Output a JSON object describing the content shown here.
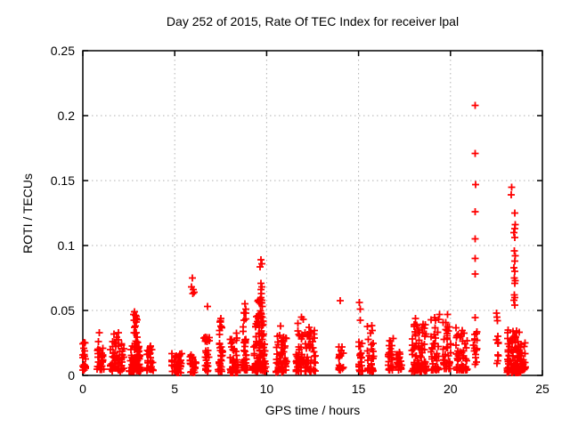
{
  "chart_data": {
    "type": "scatter",
    "title": "Day 252 of 2015, Rate Of TEC Index for receiver lpal",
    "xlabel": "GPS time / hours",
    "ylabel": "ROTI / TECUs",
    "xlim": [
      0,
      25
    ],
    "ylim": [
      0,
      0.25
    ],
    "x_ticks": [
      {
        "v": 0,
        "label": "0"
      },
      {
        "v": 5,
        "label": "5"
      },
      {
        "v": 10,
        "label": "10"
      },
      {
        "v": 15,
        "label": "15"
      },
      {
        "v": 20,
        "label": "20"
      },
      {
        "v": 25,
        "label": "25"
      }
    ],
    "y_ticks": [
      {
        "v": 0,
        "label": "0"
      },
      {
        "v": 0.05,
        "label": "0.05"
      },
      {
        "v": 0.1,
        "label": "0.1"
      },
      {
        "v": 0.15,
        "label": "0.15"
      },
      {
        "v": 0.2,
        "label": "0.2"
      },
      {
        "v": 0.25,
        "label": "0.25"
      }
    ],
    "grid": true,
    "legend": false,
    "marker": "plus",
    "marker_color": "#ff0000",
    "grid_color": "#b0b0b0",
    "axis_color": "#000000",
    "clusters": [
      {
        "x": 0.08,
        "hw": 0.1,
        "ymin": 0.004,
        "ymax": 0.031,
        "n": 22,
        "bias": 1.6
      },
      {
        "x": 0.95,
        "hw": 0.18,
        "ymin": 0.004,
        "ymax": 0.021,
        "n": 30,
        "bias": 1.5
      },
      {
        "x": 1.85,
        "hw": 0.38,
        "ymin": 0.003,
        "ymax": 0.03,
        "n": 55,
        "bias": 1.6
      },
      {
        "x": 2.85,
        "hw": 0.33,
        "ymin": 0.003,
        "ymax": 0.047,
        "n": 90,
        "bias": 2.2,
        "taper": true
      },
      {
        "x": 3.65,
        "hw": 0.18,
        "ymin": 0.003,
        "ymax": 0.024,
        "n": 30,
        "bias": 1.6
      },
      {
        "x": 5.1,
        "hw": 0.28,
        "ymin": 0.002,
        "ymax": 0.017,
        "n": 40,
        "bias": 1.4
      },
      {
        "x": 6.0,
        "hw": 0.17,
        "ymin": 0.002,
        "ymax": 0.016,
        "n": 28,
        "bias": 1.4
      },
      {
        "x": 6.75,
        "hw": 0.16,
        "ymin": 0.003,
        "ymax": 0.03,
        "n": 28,
        "bias": 1.7
      },
      {
        "x": 7.5,
        "hw": 0.14,
        "ymin": 0.003,
        "ymax": 0.046,
        "n": 32,
        "bias": 2.0,
        "taper": true
      },
      {
        "x": 8.2,
        "hw": 0.22,
        "ymin": 0.002,
        "ymax": 0.034,
        "n": 45,
        "bias": 1.8
      },
      {
        "x": 8.8,
        "hw": 0.16,
        "ymin": 0.004,
        "ymax": 0.056,
        "n": 40,
        "bias": 2.1,
        "taper": true
      },
      {
        "x": 9.6,
        "hw": 0.38,
        "ymin": 0.003,
        "ymax": 0.06,
        "n": 110,
        "bias": 2.2,
        "taper": true
      },
      {
        "x": 10.8,
        "hw": 0.3,
        "ymin": 0.002,
        "ymax": 0.032,
        "n": 65,
        "bias": 1.7
      },
      {
        "x": 12.1,
        "hw": 0.55,
        "ymin": 0.003,
        "ymax": 0.035,
        "n": 95,
        "bias": 1.8
      },
      {
        "x": 14.05,
        "hw": 0.14,
        "ymin": 0.004,
        "ymax": 0.022,
        "n": 20,
        "bias": 1.5
      },
      {
        "x": 15.1,
        "hw": 0.12,
        "ymin": 0.003,
        "ymax": 0.028,
        "n": 26,
        "bias": 1.7
      },
      {
        "x": 15.65,
        "hw": 0.17,
        "ymin": 0.003,
        "ymax": 0.04,
        "n": 30,
        "bias": 1.9
      },
      {
        "x": 16.75,
        "hw": 0.14,
        "ymin": 0.004,
        "ymax": 0.031,
        "n": 26,
        "bias": 1.7
      },
      {
        "x": 17.2,
        "hw": 0.16,
        "ymin": 0.004,
        "ymax": 0.018,
        "n": 20,
        "bias": 1.4
      },
      {
        "x": 18.3,
        "hw": 0.42,
        "ymin": 0.003,
        "ymax": 0.04,
        "n": 85,
        "bias": 1.9
      },
      {
        "x": 19.15,
        "hw": 0.22,
        "ymin": 0.004,
        "ymax": 0.046,
        "n": 40,
        "bias": 1.9
      },
      {
        "x": 19.8,
        "hw": 0.22,
        "ymin": 0.005,
        "ymax": 0.042,
        "n": 38,
        "bias": 1.8
      },
      {
        "x": 20.6,
        "hw": 0.32,
        "ymin": 0.004,
        "ymax": 0.038,
        "n": 50,
        "bias": 1.8
      },
      {
        "x": 21.35,
        "hw": 0.1,
        "ymin": 0.008,
        "ymax": 0.035,
        "n": 15,
        "bias": 1.5
      },
      {
        "x": 22.55,
        "hw": 0.06,
        "ymin": 0.008,
        "ymax": 0.035,
        "n": 10,
        "bias": 1.3
      },
      {
        "x": 23.45,
        "hw": 0.38,
        "ymin": 0.002,
        "ymax": 0.035,
        "n": 100,
        "bias": 1.8
      },
      {
        "x": 23.95,
        "hw": 0.15,
        "ymin": 0.004,
        "ymax": 0.025,
        "n": 20,
        "bias": 1.5
      }
    ],
    "points": [
      [
        0.85,
        0.026
      ],
      [
        0.9,
        0.033
      ],
      [
        1.7,
        0.032
      ],
      [
        1.95,
        0.033
      ],
      [
        2.75,
        0.047
      ],
      [
        2.8,
        0.049
      ],
      [
        5.92,
        0.068
      ],
      [
        5.95,
        0.075
      ],
      [
        5.98,
        0.063
      ],
      [
        6.0,
        0.066
      ],
      [
        6.05,
        0.064
      ],
      [
        6.78,
        0.053
      ],
      [
        7.45,
        0.041
      ],
      [
        7.5,
        0.044
      ],
      [
        7.55,
        0.037
      ],
      [
        9.65,
        0.0835
      ],
      [
        9.7,
        0.089
      ],
      [
        9.75,
        0.086
      ],
      [
        9.68,
        0.066
      ],
      [
        9.7,
        0.071
      ],
      [
        9.72,
        0.063
      ],
      [
        9.73,
        0.068
      ],
      [
        9.7,
        0.06
      ],
      [
        9.75,
        0.058
      ],
      [
        10.75,
        0.038
      ],
      [
        11.7,
        0.04
      ],
      [
        11.9,
        0.045
      ],
      [
        12.0,
        0.043
      ],
      [
        12.3,
        0.037
      ],
      [
        14.0,
        0.0575
      ],
      [
        15.05,
        0.056
      ],
      [
        15.08,
        0.051
      ],
      [
        15.1,
        0.0425
      ],
      [
        18.1,
        0.044
      ],
      [
        19.4,
        0.047
      ],
      [
        19.85,
        0.047
      ],
      [
        21.35,
        0.0445
      ],
      [
        21.35,
        0.078
      ],
      [
        21.35,
        0.09
      ],
      [
        21.33,
        0.105
      ],
      [
        21.35,
        0.126
      ],
      [
        21.37,
        0.147
      ],
      [
        21.33,
        0.171
      ],
      [
        21.35,
        0.208
      ],
      [
        22.5,
        0.048
      ],
      [
        22.52,
        0.045
      ],
      [
        22.55,
        0.042
      ],
      [
        23.5,
        0.054
      ],
      [
        23.45,
        0.058
      ],
      [
        23.5,
        0.06
      ],
      [
        23.48,
        0.062
      ],
      [
        23.5,
        0.071
      ],
      [
        23.52,
        0.073
      ],
      [
        23.47,
        0.075
      ],
      [
        23.5,
        0.08
      ],
      [
        23.45,
        0.083
      ],
      [
        23.5,
        0.088
      ],
      [
        23.52,
        0.092
      ],
      [
        23.48,
        0.096
      ],
      [
        23.5,
        0.106
      ],
      [
        23.45,
        0.11
      ],
      [
        23.5,
        0.113
      ],
      [
        23.52,
        0.116
      ],
      [
        23.5,
        0.125
      ],
      [
        23.3,
        0.139
      ],
      [
        23.32,
        0.145
      ]
    ]
  }
}
